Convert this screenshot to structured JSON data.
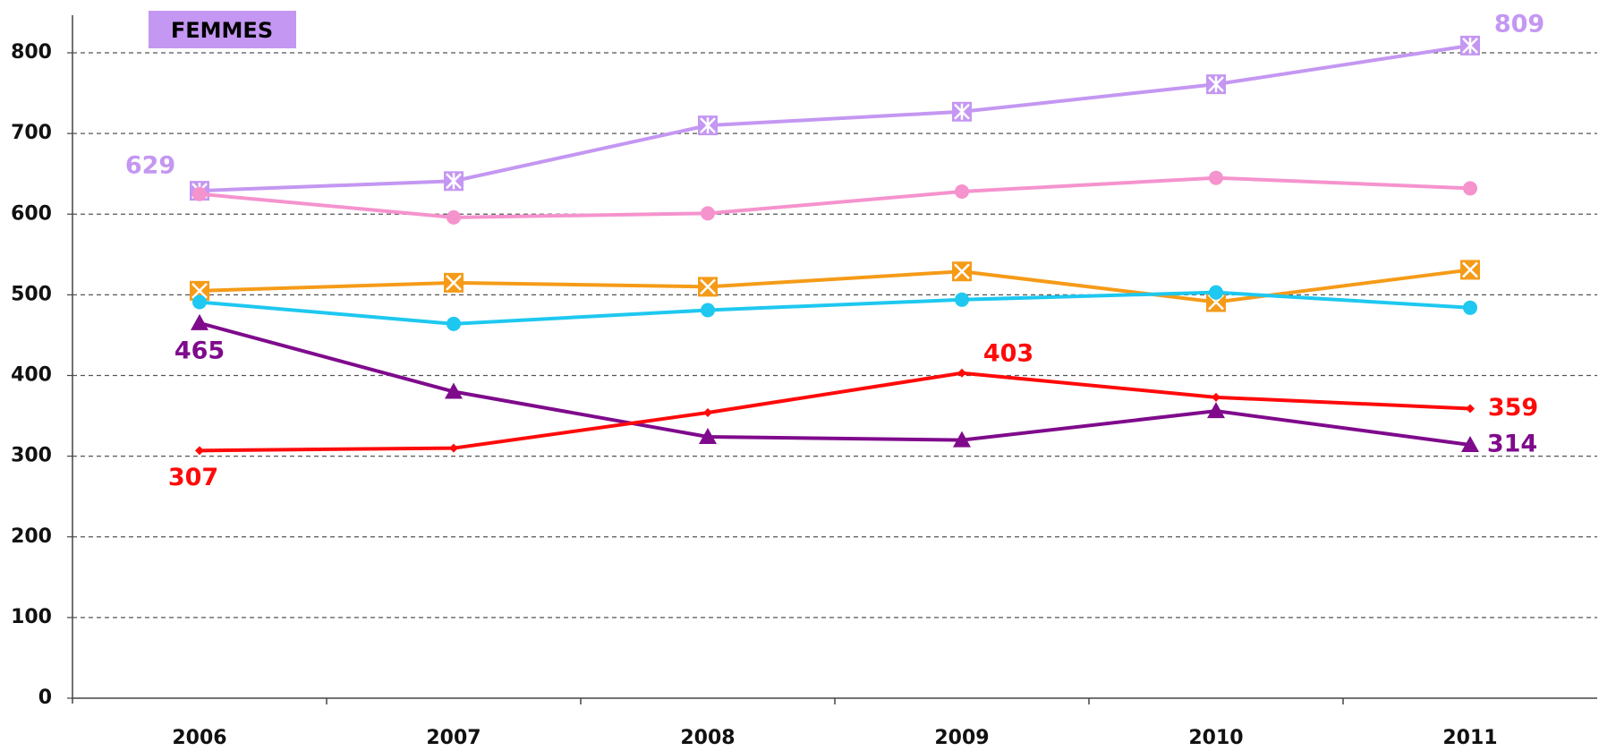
{
  "chart_data": {
    "type": "line",
    "title": "FEMMES",
    "title_color": "#c497f2",
    "categories": [
      "2006",
      "2007",
      "2008",
      "2009",
      "2010",
      "2011"
    ],
    "ylim": [
      0,
      800
    ],
    "yticks": [
      0,
      100,
      200,
      300,
      400,
      500,
      600,
      700,
      800
    ],
    "grid": true,
    "series": [
      {
        "color": "#c497f2",
        "marker": "box-asterisk",
        "values": [
          629,
          641,
          710,
          727,
          761,
          809
        ],
        "value_labels": [
          "629",
          null,
          null,
          null,
          null,
          "809"
        ]
      },
      {
        "color": "#f593cd",
        "marker": "circle",
        "values": [
          625,
          596,
          601,
          628,
          645,
          632
        ]
      },
      {
        "color": "#f59b18",
        "marker": "box-x",
        "values": [
          505,
          515,
          510,
          529,
          491,
          531
        ]
      },
      {
        "color": "#1ec8f0",
        "marker": "circle",
        "values": [
          491,
          464,
          481,
          494,
          503,
          484
        ]
      },
      {
        "color": "#7f0a8c",
        "marker": "triangle",
        "values": [
          465,
          380,
          324,
          320,
          356,
          314
        ],
        "value_labels": [
          "465",
          null,
          null,
          null,
          null,
          "314"
        ]
      },
      {
        "color": "#ff0a0a",
        "marker": "diamond",
        "values": [
          307,
          310,
          354,
          403,
          373,
          359
        ],
        "value_labels": [
          "307",
          null,
          null,
          "403",
          null,
          "359"
        ]
      }
    ]
  }
}
